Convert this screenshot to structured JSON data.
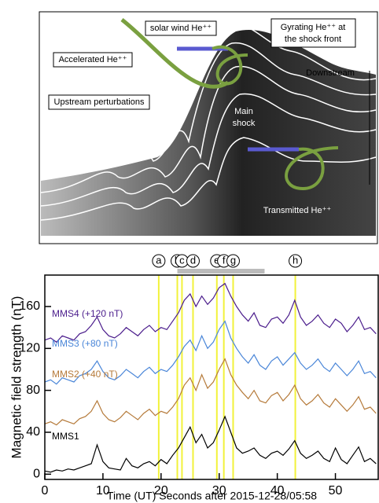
{
  "diagram": {
    "labels": [
      "solar wind He⁺⁺",
      "Gyrating He⁺⁺ at",
      "the shock front",
      "Accelerated He⁺⁺",
      "Downstream",
      "Upstream perturbations",
      "Main",
      "shock",
      "Transmitted He⁺⁺"
    ]
  },
  "chart_data": {
    "type": "line",
    "ylabel": "Magnetic field strength (nT)",
    "xlabel": "Time (UT) Seconds after 2015-12-28/05:58",
    "xlim": [
      0,
      57.5
    ],
    "ylim": [
      -5,
      190
    ],
    "xticks": [
      0,
      10,
      20,
      30,
      40,
      50
    ],
    "yticks": [
      0,
      40,
      80,
      120,
      160
    ],
    "events": {
      "labels": [
        "a",
        "b",
        "c",
        "d",
        "e",
        "f",
        "g",
        "h"
      ],
      "x": [
        19.6,
        22.8,
        23.6,
        25.5,
        29.6,
        30.8,
        32.4,
        43.1
      ],
      "color": "#f2f23a"
    },
    "x": [
      0,
      1,
      2,
      3,
      4,
      5,
      6,
      7,
      8,
      9,
      10,
      11,
      12,
      13,
      14,
      15,
      16,
      17,
      18,
      19,
      20,
      21,
      22,
      23,
      24,
      25,
      26,
      27,
      28,
      29,
      30,
      31,
      32,
      33,
      34,
      35,
      36,
      37,
      38,
      39,
      40,
      41,
      42,
      43,
      44,
      45,
      46,
      47,
      48,
      49,
      50,
      51,
      52,
      53,
      54,
      55,
      56,
      57
    ],
    "series": [
      {
        "name": "MMS4 (+120 nT)",
        "color": "#4b1d8c",
        "values": [
          128,
          130,
          126,
          132,
          130,
          128,
          134,
          136,
          142,
          150,
          138,
          132,
          130,
          134,
          140,
          136,
          132,
          138,
          142,
          136,
          140,
          138,
          146,
          154,
          166,
          172,
          160,
          170,
          162,
          168,
          178,
          182,
          170,
          160,
          152,
          146,
          154,
          142,
          140,
          148,
          150,
          144,
          152,
          166,
          150,
          142,
          146,
          152,
          144,
          140,
          148,
          144,
          136,
          142,
          150,
          138,
          140,
          134
        ]
      },
      {
        "name": "MMS3 (+80 nT)",
        "color": "#4a86d8",
        "values": [
          88,
          90,
          86,
          92,
          90,
          88,
          94,
          96,
          100,
          108,
          98,
          92,
          90,
          94,
          100,
          96,
          92,
          98,
          102,
          96,
          100,
          98,
          104,
          112,
          122,
          128,
          118,
          132,
          120,
          126,
          138,
          146,
          130,
          120,
          112,
          106,
          114,
          104,
          100,
          108,
          112,
          104,
          110,
          116,
          106,
          100,
          104,
          110,
          102,
          98,
          106,
          100,
          94,
          100,
          108,
          96,
          98,
          92
        ]
      },
      {
        "name": "MMS2 (+40 nT)",
        "color": "#b57a3a",
        "values": [
          48,
          50,
          47,
          52,
          50,
          48,
          53,
          55,
          60,
          70,
          58,
          52,
          50,
          54,
          60,
          56,
          52,
          58,
          62,
          56,
          60,
          58,
          64,
          72,
          85,
          92,
          80,
          95,
          82,
          88,
          100,
          110,
          95,
          85,
          78,
          72,
          80,
          70,
          68,
          75,
          78,
          70,
          76,
          85,
          72,
          66,
          70,
          76,
          68,
          64,
          72,
          66,
          60,
          66,
          74,
          62,
          64,
          58
        ]
      },
      {
        "name": "MMS1",
        "color": "#000000",
        "values": [
          3,
          2,
          4,
          3,
          5,
          4,
          6,
          8,
          10,
          28,
          12,
          6,
          5,
          4,
          15,
          8,
          6,
          10,
          12,
          8,
          14,
          10,
          18,
          25,
          35,
          45,
          30,
          38,
          25,
          30,
          42,
          55,
          40,
          25,
          20,
          22,
          25,
          18,
          15,
          20,
          22,
          18,
          24,
          32,
          20,
          15,
          18,
          22,
          15,
          12,
          25,
          14,
          10,
          18,
          26,
          12,
          15,
          10
        ]
      }
    ]
  }
}
